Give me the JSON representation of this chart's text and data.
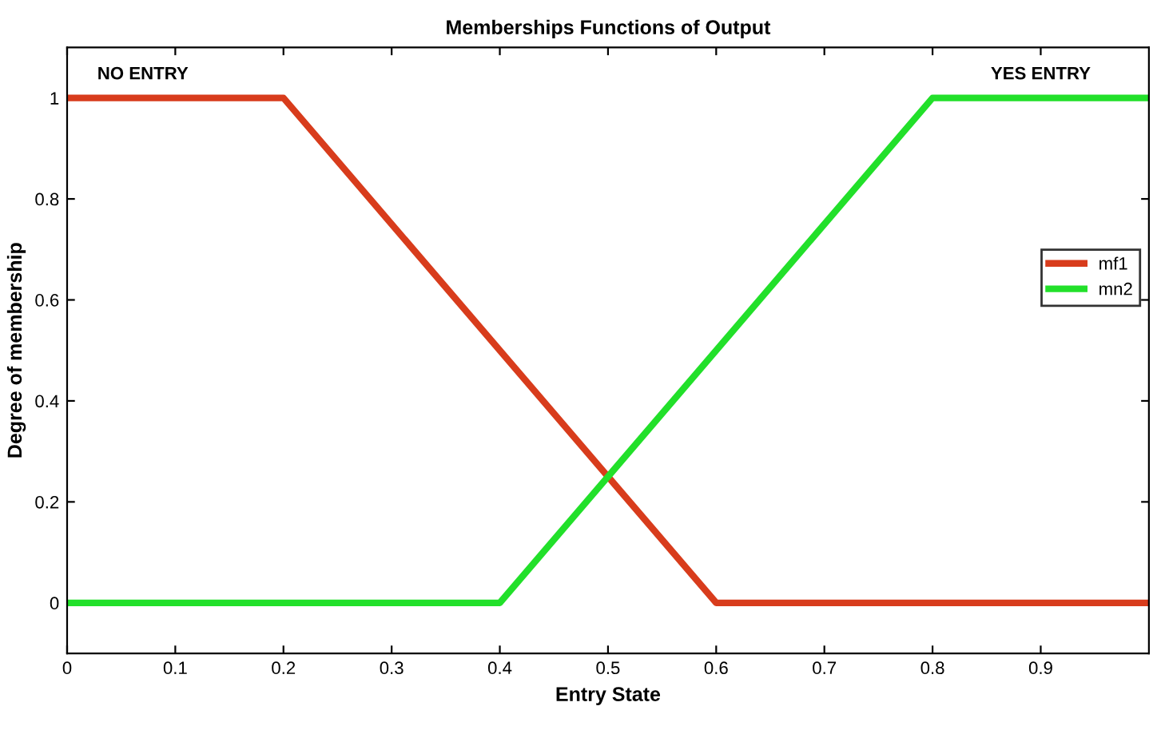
{
  "chart_data": {
    "type": "line",
    "title": "Memberships Functions of Output",
    "xlabel": "Entry State",
    "ylabel": "Degree of membership",
    "series": [
      {
        "name": "mf1",
        "color": "#d83c1c",
        "x": [
          0,
          0.2,
          0.6,
          1
        ],
        "values": [
          1,
          1,
          0,
          0
        ]
      },
      {
        "name": "mn2",
        "color": "#22e02a",
        "x": [
          0,
          0.4,
          0.8,
          1
        ],
        "values": [
          0,
          0,
          1,
          1
        ]
      }
    ],
    "annotations": [
      "NO ENTRY",
      "YES ENTRY"
    ],
    "xlim": [
      0,
      1
    ],
    "ylim": [
      -0.1,
      1.1
    ],
    "xticks": [
      0,
      0.1,
      0.2,
      0.3,
      0.4,
      0.5,
      0.6,
      0.7,
      0.8,
      0.9
    ],
    "yticks": [
      0,
      0.2,
      0.4,
      0.6,
      0.8,
      1
    ],
    "legend": "right",
    "grid": false,
    "marker": "none",
    "line_style": "solid"
  }
}
